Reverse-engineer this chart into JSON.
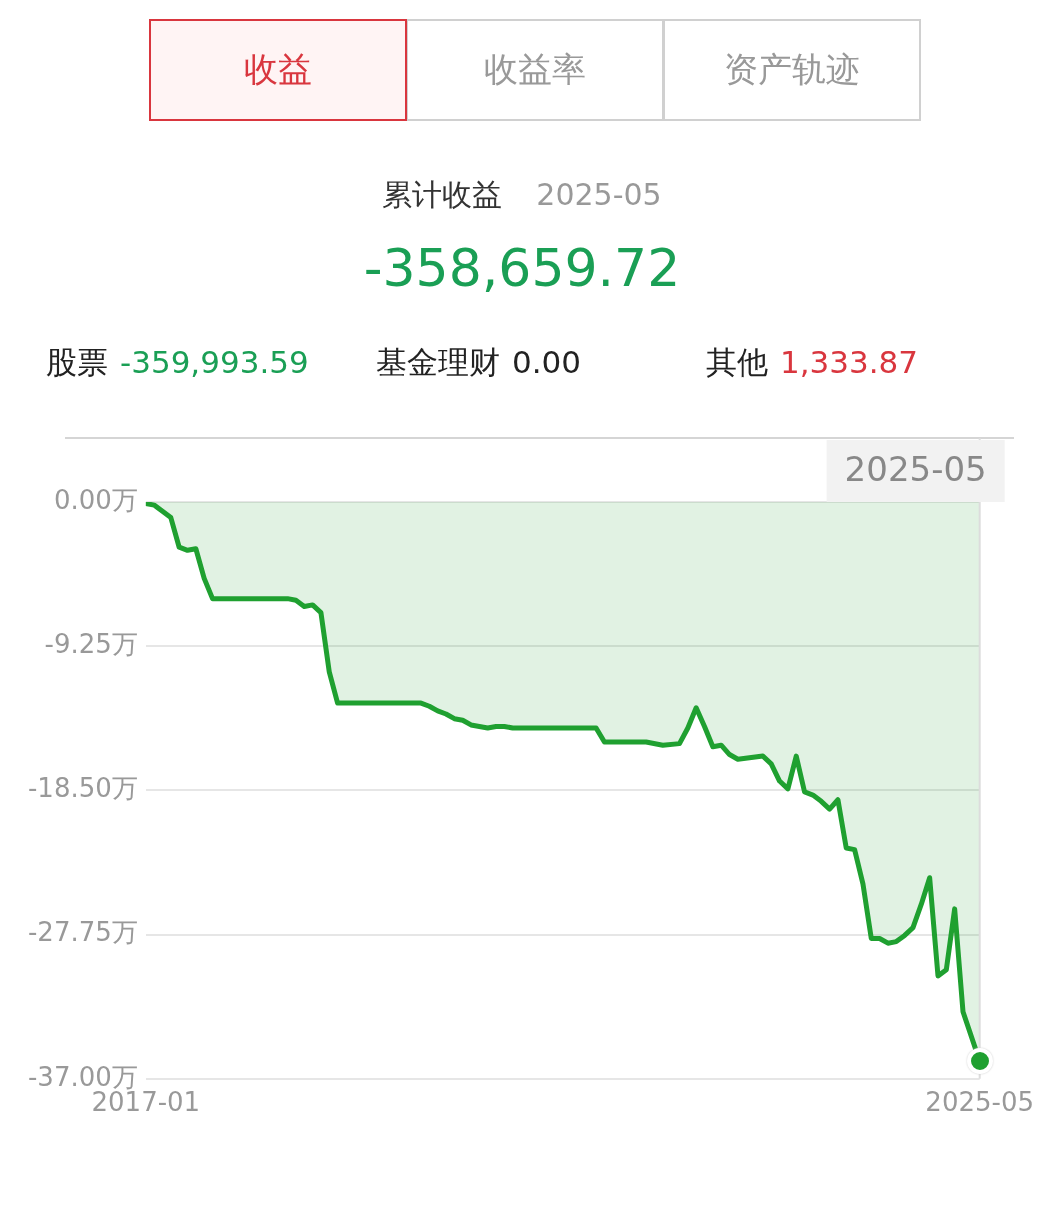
{
  "chart_data": {
    "type": "area",
    "title": "累计收益",
    "subtitle": "-358,659.72",
    "annotations": [
      "收益",
      "收益率",
      "资产轨迹",
      "2025-05",
      "股票",
      "-359,993.59",
      "基金理财",
      "0.00",
      "其他",
      "1,333.87",
      "2025-05"
    ],
    "x": [
      "2017-01",
      "2017-02",
      "2017-03",
      "2017-04",
      "2017-05",
      "2017-06",
      "2017-07",
      "2017-08",
      "2017-09",
      "2018-06",
      "2018-07",
      "2018-08",
      "2018-09",
      "2018-10",
      "2018-11",
      "2018-12",
      "2019-10",
      "2019-11",
      "2019-12",
      "2020-01",
      "2020-02",
      "2020-03",
      "2020-04",
      "2020-06",
      "2020-07",
      "2020-08",
      "2020-09",
      "2021-07",
      "2021-08",
      "2021-10",
      "2022-01",
      "2022-03",
      "2022-05",
      "2022-06",
      "2022-07",
      "2022-08",
      "2022-09",
      "2022-10",
      "2022-11",
      "2022-12",
      "2023-03",
      "2023-04",
      "2023-05",
      "2023-06",
      "2023-07",
      "2023-08",
      "2023-09",
      "2023-10",
      "2023-11",
      "2023-12",
      "2024-01",
      "2024-02",
      "2024-03",
      "2024-04",
      "2024-05",
      "2024-06",
      "2024-07",
      "2024-08",
      "2024-09",
      "2024-10",
      "2024-11",
      "2024-12",
      "2025-01",
      "2025-02",
      "2025-03",
      "2025-05"
    ],
    "series": [
      {
        "color": "#1fa030",
        "values": [
          -0.1,
          -0.2,
          -0.6,
          -1.0,
          -2.9,
          -3.1,
          -3.0,
          -4.9,
          -6.2,
          -6.2,
          -6.3,
          -6.7,
          -6.6,
          -7.1,
          -10.9,
          -12.9,
          -12.9,
          -13.1,
          -13.4,
          -13.6,
          -13.9,
          -14.0,
          -14.3,
          -14.5,
          -14.4,
          -14.4,
          -14.5,
          -14.5,
          -15.4,
          -15.4,
          -15.4,
          -15.6,
          -15.5,
          -14.5,
          -13.2,
          -14.4,
          -15.7,
          -15.6,
          -16.2,
          -16.5,
          -16.3,
          -16.8,
          -17.9,
          -18.4,
          -16.3,
          -18.6,
          -18.8,
          -19.2,
          -19.7,
          -19.1,
          -22.2,
          -22.3,
          -24.5,
          -28.0,
          -28.0,
          -28.3,
          -28.2,
          -27.8,
          -27.3,
          -25.8,
          -24.1,
          -30.4,
          -30.0,
          -26.1,
          -32.7,
          -35.87
        ]
      }
    ],
    "xlim": [
      "2017-01",
      "2025-05"
    ],
    "xticks": [
      "2017-01",
      "2025-05"
    ],
    "ylim": [
      -37,
      0
    ],
    "yticks": [
      {
        "value": 0,
        "label": "0.00万"
      },
      {
        "value": -9.25,
        "label": "-9.25万"
      },
      {
        "value": -18.5,
        "label": "-18.50万"
      },
      {
        "value": -27.75,
        "label": "-27.75万"
      },
      {
        "value": -37,
        "label": "-37.00万"
      }
    ],
    "grid": "y",
    "legend": false
  }
}
